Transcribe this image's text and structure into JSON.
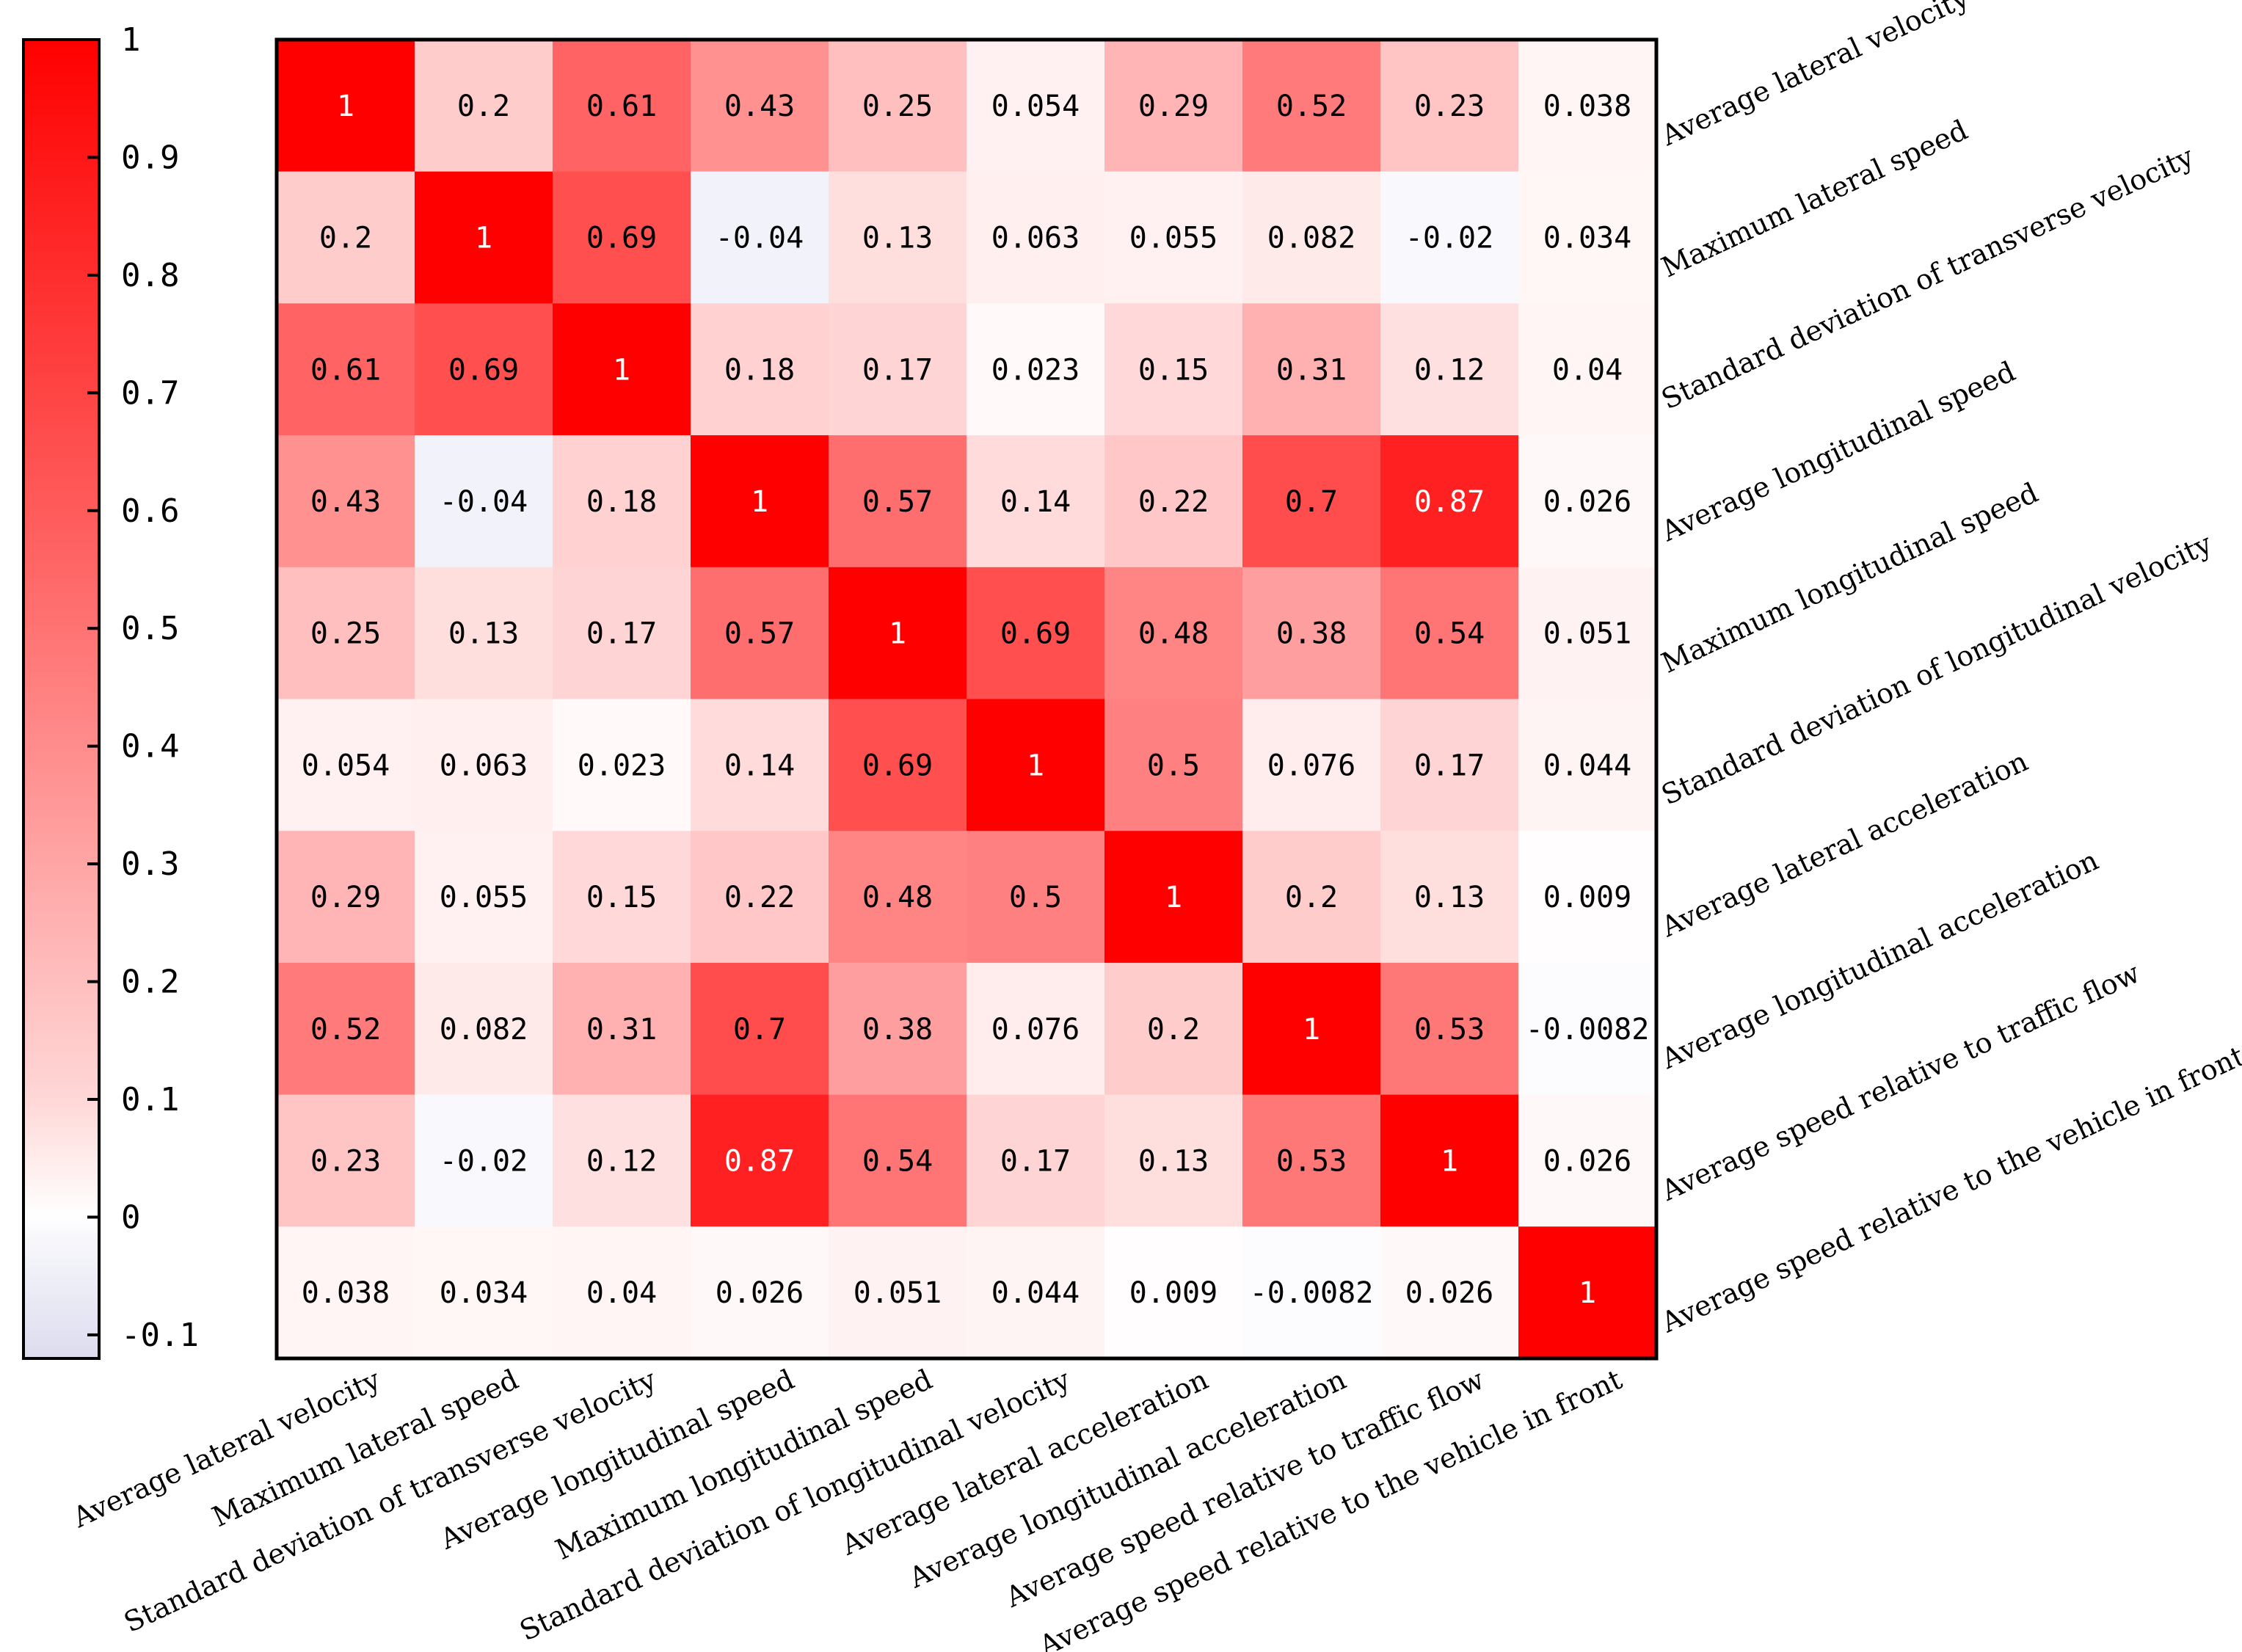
{
  "chart_data": {
    "type": "heatmap",
    "title": "",
    "variables": [
      "Average lateral velocity",
      "Maximum lateral speed",
      "Standard deviation of transverse velocity",
      "Average longitudinal speed",
      "Maximum longitudinal speed",
      "Standard deviation of longitudinal velocity",
      "Average lateral acceleration",
      "Average longitudinal acceleration",
      "Average speed relative to traffic flow",
      "Average speed relative to the vehicle in front"
    ],
    "matrix": [
      [
        "1",
        "0.2",
        "0.61",
        "0.43",
        "0.25",
        "0.054",
        "0.29",
        "0.52",
        "0.23",
        "0.038"
      ],
      [
        "0.2",
        "1",
        "0.69",
        "-0.04",
        "0.13",
        "0.063",
        "0.055",
        "0.082",
        "-0.02",
        "0.034"
      ],
      [
        "0.61",
        "0.69",
        "1",
        "0.18",
        "0.17",
        "0.023",
        "0.15",
        "0.31",
        "0.12",
        "0.04"
      ],
      [
        "0.43",
        "-0.04",
        "0.18",
        "1",
        "0.57",
        "0.14",
        "0.22",
        "0.7",
        "0.87",
        "0.026"
      ],
      [
        "0.25",
        "0.13",
        "0.17",
        "0.57",
        "1",
        "0.69",
        "0.48",
        "0.38",
        "0.54",
        "0.051"
      ],
      [
        "0.054",
        "0.063",
        "0.023",
        "0.14",
        "0.69",
        "1",
        "0.5",
        "0.076",
        "0.17",
        "0.044"
      ],
      [
        "0.29",
        "0.055",
        "0.15",
        "0.22",
        "0.48",
        "0.5",
        "1",
        "0.2",
        "0.13",
        "0.009"
      ],
      [
        "0.52",
        "0.082",
        "0.31",
        "0.7",
        "0.38",
        "0.076",
        "0.2",
        "1",
        "0.53",
        "-0.0082"
      ],
      [
        "0.23",
        "-0.02",
        "0.12",
        "0.87",
        "0.54",
        "0.17",
        "0.13",
        "0.53",
        "1",
        "0.026"
      ],
      [
        "0.038",
        "0.034",
        "0.04",
        "0.026",
        "0.051",
        "0.044",
        "0.009",
        "-0.0082",
        "0.026",
        "1"
      ]
    ],
    "colorbar": {
      "range": [
        -0.12,
        1.0
      ],
      "ticks": [
        "1",
        "0.9",
        "0.8",
        "0.7",
        "0.6",
        "0.5",
        "0.4",
        "0.3",
        "0.2",
        "0.1",
        "0",
        "-0.1"
      ],
      "tick_values": [
        1,
        0.9,
        0.8,
        0.7,
        0.6,
        0.5,
        0.4,
        0.3,
        0.2,
        0.1,
        0,
        -0.1
      ],
      "color_max": "#ff0000",
      "color_zero": "#ffffff",
      "color_min": "#d8d8f0"
    },
    "legend_position": "left"
  }
}
